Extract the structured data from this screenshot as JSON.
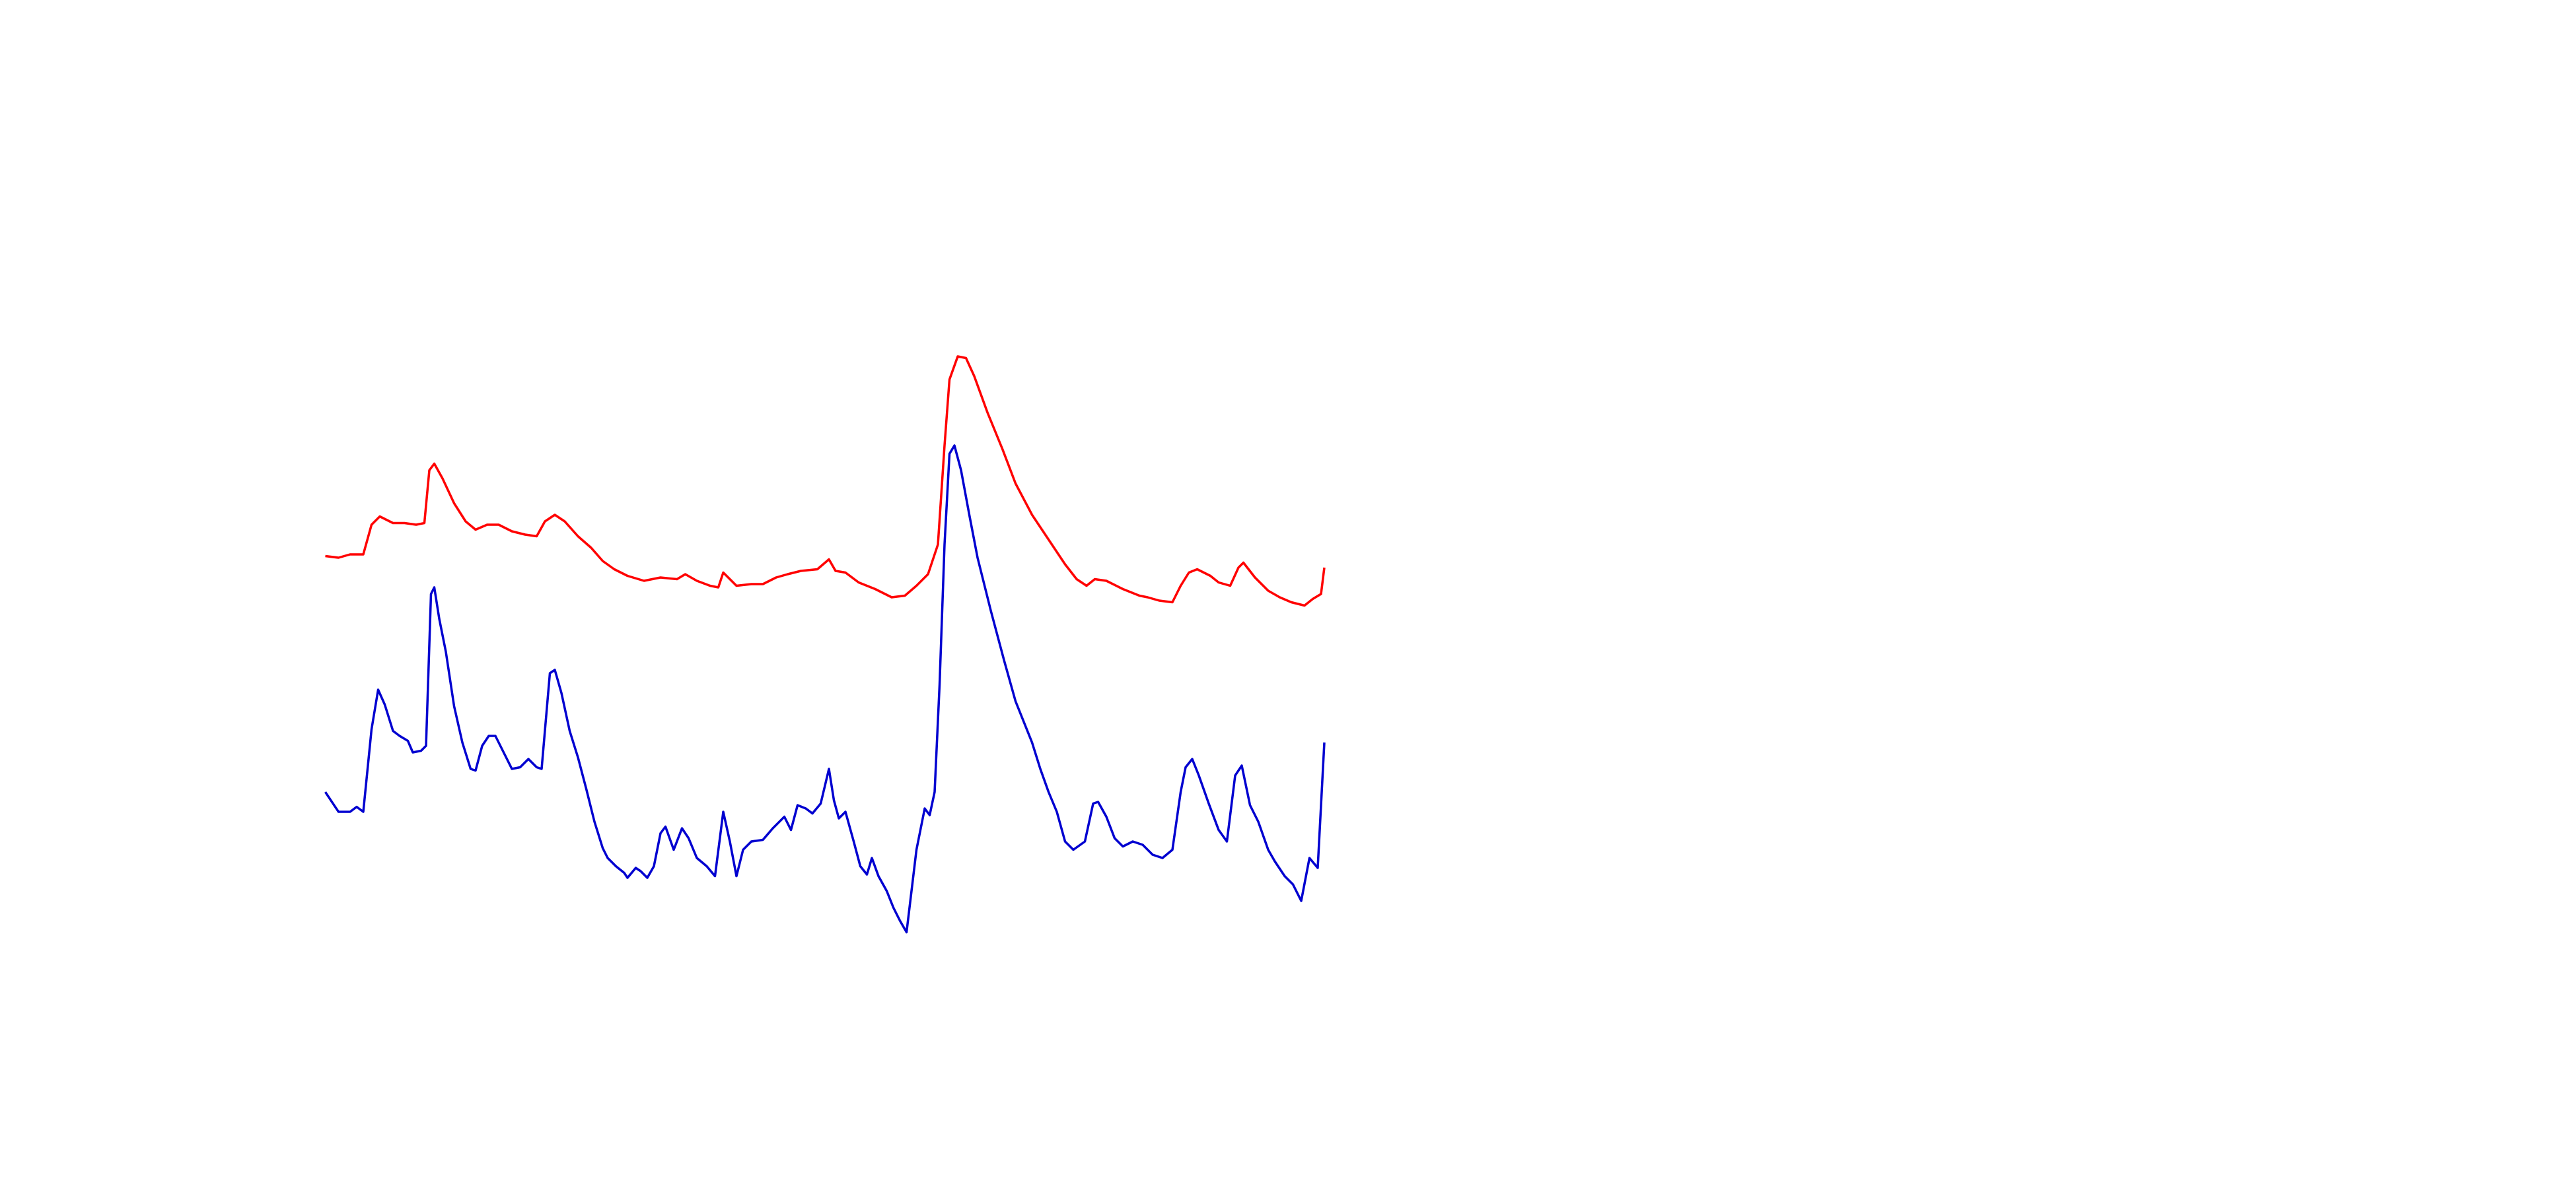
{
  "chart_data": {
    "type": "line",
    "xlim": [
      0,
      1560
    ],
    "ylim": [
      0,
      720
    ],
    "series": [
      {
        "color": "#ff0000",
        "x": [
          197,
          205,
          212,
          220,
          225,
          230,
          238,
          245,
          252,
          257,
          260,
          263,
          268,
          275,
          282,
          288,
          295,
          302,
          310,
          318,
          325,
          330,
          336,
          342,
          350,
          358,
          365,
          372,
          380,
          390,
          400,
          410,
          415,
          422,
          430,
          435,
          438,
          442,
          446,
          455,
          462,
          470,
          477,
          485,
          495,
          502,
          506,
          512,
          520,
          530,
          540,
          548,
          555,
          562,
          568,
          572,
          575,
          580,
          585,
          590,
          598,
          607,
          615,
          625,
          635,
          645,
          652,
          658,
          663,
          670,
          680,
          690,
          695,
          702,
          710,
          715,
          720,
          725,
          733,
          738,
          745,
          750,
          753,
          760,
          768,
          775,
          782,
          790,
          795,
          800,
          802
        ],
        "values": [
          383,
          382,
          384,
          384,
          402,
          407,
          403,
          403,
          402,
          403,
          435,
          439,
          430,
          415,
          404,
          399,
          402,
          402,
          398,
          396,
          395,
          404,
          408,
          404,
          395,
          388,
          380,
          375,
          371,
          368,
          370,
          369,
          372,
          368,
          365,
          364,
          373,
          369,
          365,
          366,
          366,
          370,
          372,
          374,
          375,
          381,
          374,
          373,
          367,
          363,
          358,
          359,
          365,
          372,
          390,
          450,
          490,
          504,
          503,
          492,
          470,
          448,
          427,
          408,
          393,
          378,
          369,
          365,
          369,
          368,
          363,
          359,
          358,
          356,
          355,
          365,
          373,
          375,
          371,
          367,
          365,
          376,
          379,
          370,
          362,
          358,
          355,
          353,
          357,
          360,
          376
        ]
      },
      {
        "color": "#0000d0",
        "x": [
          197,
          205,
          212,
          216,
          220,
          225,
          229,
          233,
          238,
          242,
          247,
          250,
          255,
          258,
          261,
          263,
          266,
          270,
          275,
          280,
          285,
          288,
          292,
          296,
          300,
          305,
          310,
          315,
          320,
          325,
          328,
          333,
          336,
          340,
          345,
          350,
          355,
          360,
          365,
          368,
          373,
          378,
          380,
          385,
          388,
          392,
          396,
          400,
          403,
          408,
          413,
          417,
          422,
          428,
          433,
          438,
          442,
          446,
          450,
          455,
          462,
          468,
          475,
          479,
          483,
          488,
          492,
          497,
          502,
          505,
          508,
          512,
          517,
          521,
          525,
          528,
          532,
          537,
          541,
          545,
          549,
          552,
          555,
          560,
          563,
          566,
          569,
          572,
          575,
          578,
          582,
          587,
          592,
          600,
          608,
          615,
          625,
          630,
          635,
          640,
          645,
          650,
          657,
          662,
          665,
          670,
          675,
          680,
          686,
          692,
          698,
          704,
          710,
          715,
          718,
          722,
          726,
          732,
          738,
          743,
          748,
          752,
          757,
          762,
          768,
          772,
          778,
          783,
          788,
          793,
          798,
          802
        ],
        "values": [
          240,
          228,
          228,
          231,
          228,
          278,
          302,
          293,
          277,
          274,
          271,
          264,
          265,
          268,
          360,
          364,
          345,
          325,
          292,
          270,
          254,
          253,
          268,
          274,
          274,
          264,
          254,
          255,
          260,
          255,
          254,
          312,
          314,
          300,
          277,
          261,
          242,
          222,
          206,
          200,
          195,
          191,
          188,
          194,
          192,
          188,
          195,
          215,
          219,
          205,
          218,
          212,
          200,
          195,
          189,
          228,
          210,
          189,
          205,
          210,
          211,
          218,
          225,
          217,
          232,
          230,
          227,
          233,
          254,
          235,
          224,
          228,
          210,
          195,
          190,
          200,
          189,
          180,
          170,
          162,
          155,
          180,
          205,
          230,
          226,
          240,
          305,
          390,
          445,
          450,
          435,
          408,
          382,
          350,
          320,
          295,
          270,
          254,
          240,
          228,
          210,
          205,
          210,
          233,
          234,
          225,
          212,
          207,
          210,
          208,
          202,
          200,
          205,
          240,
          255,
          260,
          250,
          233,
          217,
          210,
          250,
          256,
          232,
          222,
          205,
          198,
          189,
          184,
          174,
          200,
          194,
          270
        ]
      }
    ]
  }
}
